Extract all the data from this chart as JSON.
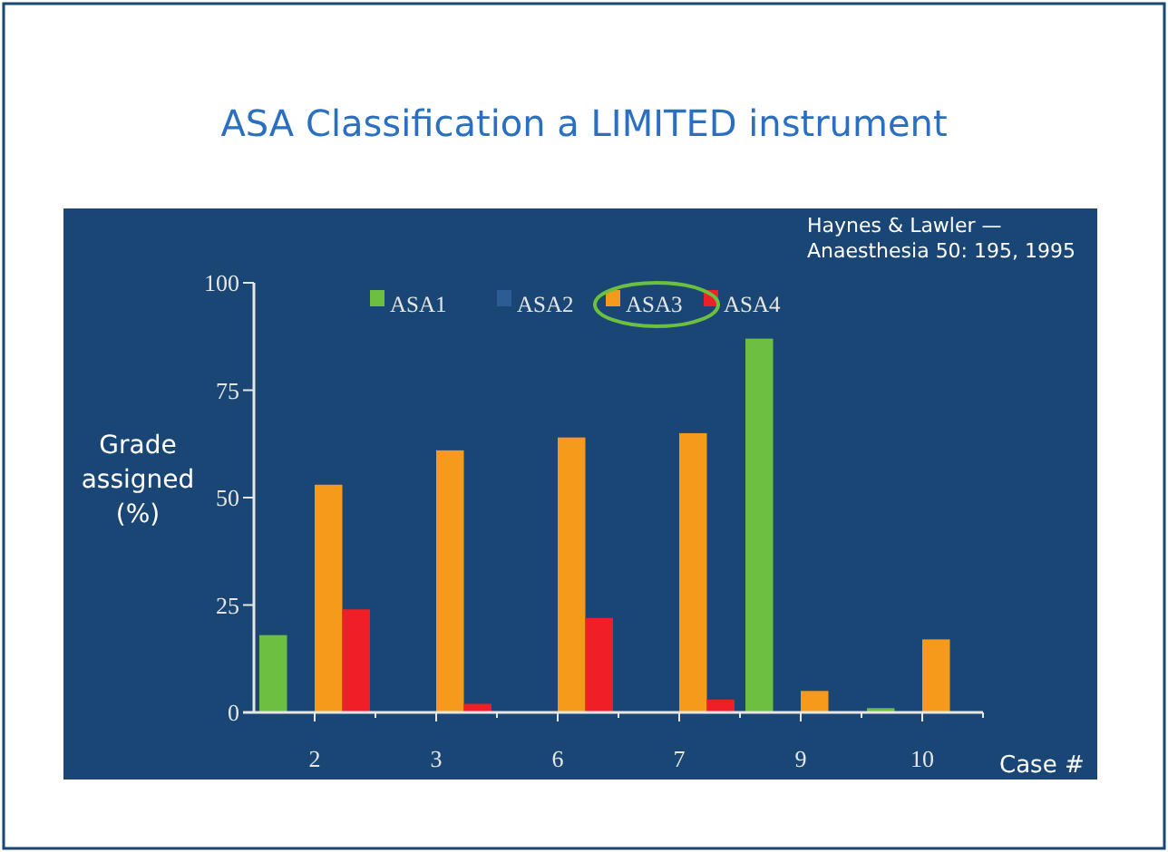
{
  "chart_data": {
    "type": "bar",
    "title": "ASA Classification a LIMITED instrument",
    "ylabel": "Grade\nassigned\n(%)",
    "xlabel": "Case #",
    "annotations": [
      "Haynes & Lawler —\nAnaesthesia 50: 195, 1995"
    ],
    "categories": [
      "2",
      "3",
      "6",
      "7",
      "9",
      "10"
    ],
    "series": [
      {
        "name": "ASA1",
        "color": "#6cbf3f",
        "values": [
          18,
          0,
          0,
          0,
          87,
          1
        ]
      },
      {
        "name": "ASA2",
        "color": "#2c5c94",
        "values": [
          0,
          0,
          0,
          0,
          0,
          0
        ]
      },
      {
        "name": "ASA3",
        "color": "#f59a1b",
        "values": [
          53,
          61,
          64,
          65,
          5,
          17
        ]
      },
      {
        "name": "ASA4",
        "color": "#ee1f25",
        "values": [
          24,
          2,
          22,
          3,
          0,
          0
        ]
      }
    ],
    "ylim": [
      0,
      100
    ],
    "yticks": [
      0,
      25,
      50,
      75,
      100
    ],
    "grid": false,
    "legend": "top"
  }
}
